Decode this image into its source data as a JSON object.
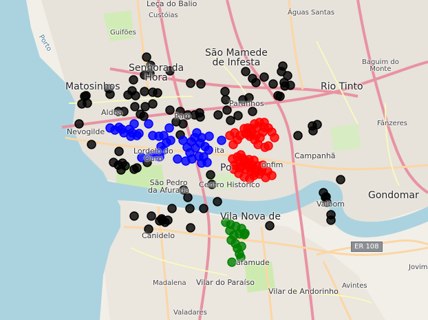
{
  "map": {
    "labels": {
      "leca_do_balio": "Leça do Balio",
      "custoias": "Custóias",
      "aguas_santas": "Águas Santas",
      "guifoes": "Guifões",
      "sao_mamede": "São Mamede\nde Infesta",
      "senhora_da_hora": "Senhora da\nHora",
      "baguim_do_monte": "Baguim do\nMonte",
      "matosinhos": "Matosinhos",
      "rio_tinto": "Rio Tinto",
      "aldoar": "Aldoa",
      "paranhos": "Paranhos",
      "ramalde": "Ram",
      "fanzeres": "Fânzeres",
      "nevogilde": "Nevogilde",
      "lordelo_do_ouro": "Lordelo do\nOuro",
      "cedofeita": "ita",
      "porto": "Po",
      "bonfim": "onfim",
      "campanha": "Campanhã",
      "sao_pedro_da_afurada": "São Pedro\nda Afurada",
      "centro_historico": "Centro Histórico",
      "gondomar": "Gondomar",
      "valbom": "Valbom",
      "vila_nova_de_gaia": "Vila Nova de",
      "canidelo": "Canidelo",
      "mafamude": "afamude",
      "er108": "ER 108",
      "jovim": "Jovim",
      "madalena": "Madalena",
      "vilar_do_paraiso": "Vilar do Paraíso",
      "avintes": "Avintes",
      "vilar_de_andorinho": "Vilar de Andorinho",
      "valadares": "Valadares",
      "porto_coast": "Porto"
    },
    "colors": {
      "sea": "#aad3df",
      "land": "#f2efe9",
      "urban": "#e5e0d8",
      "road_major": "#f7b7b0",
      "road_primary": "#fcd6a4",
      "road_secondary": "#f7fabf",
      "motorway": "#e892a2",
      "park": "#cdebb0",
      "black_cluster": "#000000",
      "blue_cluster": "#0000ff",
      "red_cluster": "#ff0000",
      "green_cluster": "#008000"
    },
    "clusters": [
      {
        "name": "black",
        "color": "#000000",
        "count": 98
      },
      {
        "name": "blue",
        "color": "#0000ff",
        "count": 44
      },
      {
        "name": "red",
        "color": "#ff0000",
        "count": 58
      },
      {
        "name": "green",
        "color": "#008000",
        "count": 16
      }
    ]
  }
}
